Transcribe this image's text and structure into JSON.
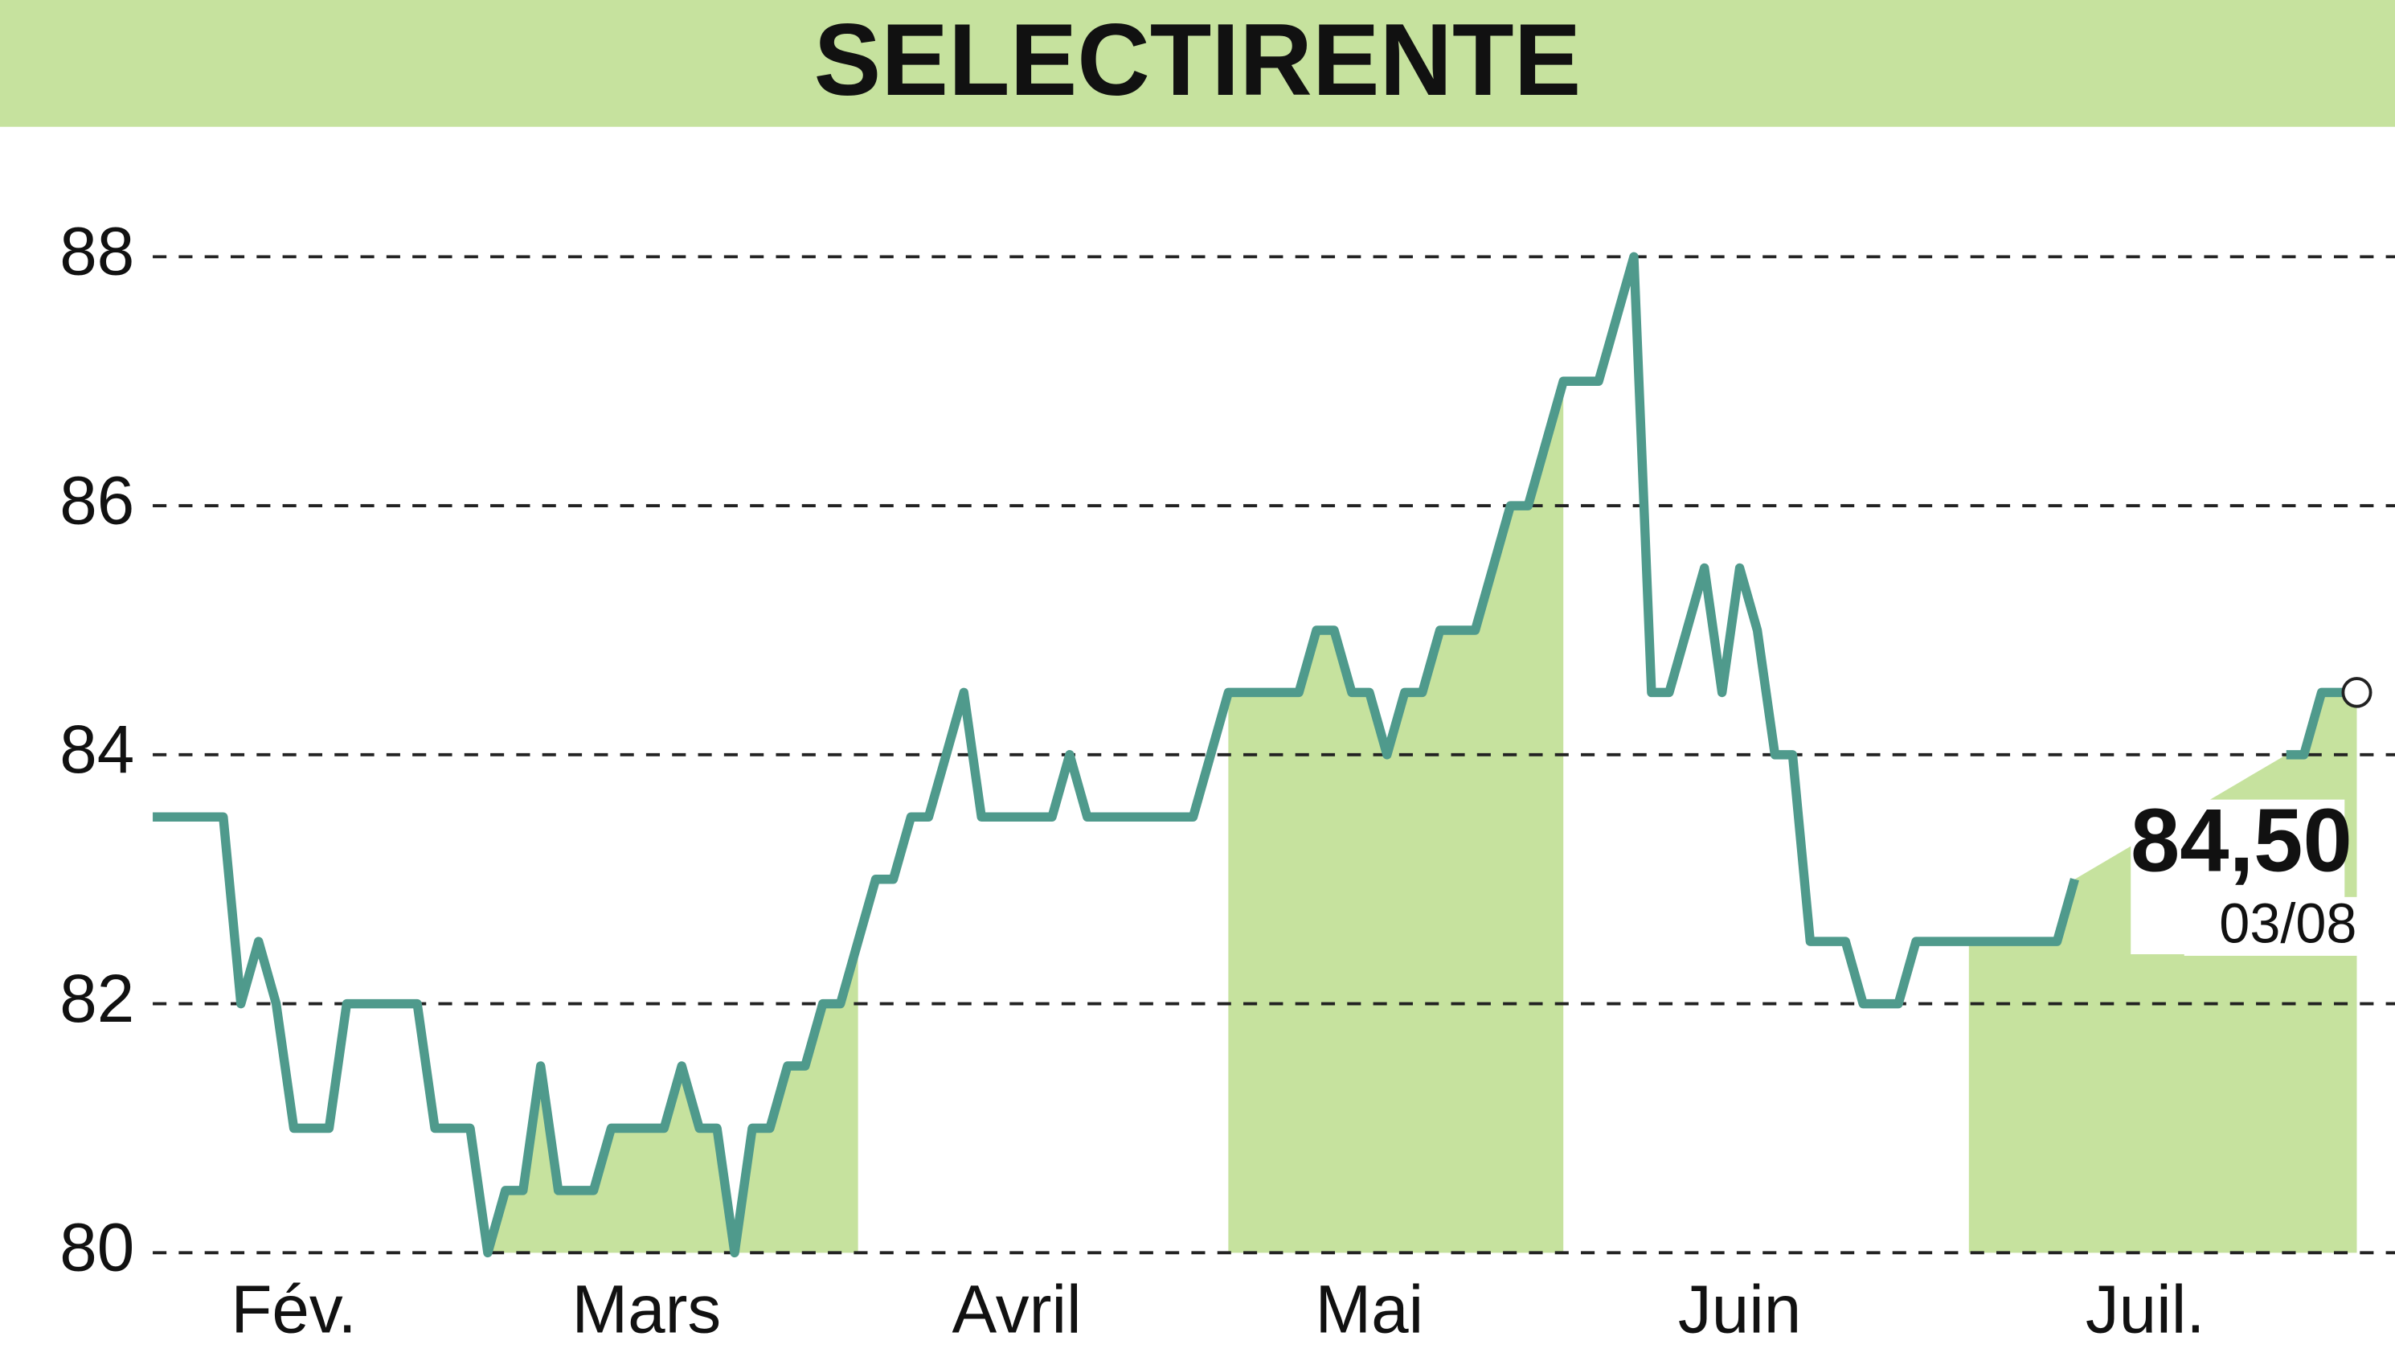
{
  "chart_data": {
    "type": "line",
    "title": "SELECTIRENTE",
    "categories": [
      null,
      null,
      null,
      null,
      null,
      null,
      null,
      null,
      "Fév.",
      null,
      null,
      null,
      null,
      null,
      null,
      null,
      null,
      null,
      null,
      null,
      null,
      null,
      null,
      null,
      null,
      null,
      null,
      null,
      "Mars",
      null,
      null,
      null,
      null,
      null,
      null,
      null,
      null,
      null,
      null,
      null,
      null,
      null,
      null,
      null,
      null,
      null,
      null,
      null,
      null,
      "Avril",
      null,
      null,
      null,
      null,
      null,
      null,
      null,
      null,
      null,
      null,
      null,
      null,
      null,
      null,
      null,
      null,
      null,
      null,
      null,
      "Mai",
      null,
      null,
      null,
      null,
      null,
      null,
      null,
      null,
      null,
      null,
      null,
      null,
      null,
      null,
      null,
      null,
      null,
      null,
      null,
      null,
      "Juin",
      null,
      null,
      null,
      null,
      null,
      null,
      null,
      null,
      null,
      null,
      null,
      null,
      null,
      null,
      null,
      null,
      null,
      null,
      null,
      null,
      null,
      null,
      "Juil.",
      null,
      null,
      null,
      null,
      null,
      null,
      null,
      null,
      null,
      null,
      null,
      null
    ],
    "series": [
      {
        "color": "#4f9a8c",
        "values": [
          83.5,
          83.5,
          83.5,
          83.5,
          83.5,
          82,
          82.5,
          82,
          81,
          81,
          81,
          82,
          82,
          82,
          82,
          82,
          81,
          81,
          81,
          80,
          80.5,
          80.5,
          81.5,
          80.5,
          80.5,
          80.5,
          81,
          81,
          81,
          81,
          81.5,
          81,
          81,
          80,
          81,
          81,
          81.5,
          81.5,
          82,
          82,
          82.5,
          83,
          83,
          83.5,
          83.5,
          84,
          84.5,
          83.5,
          83.5,
          83.5,
          83.5,
          83.5,
          84,
          83.5,
          83.5,
          83.5,
          83.5,
          83.5,
          83.5,
          83.5,
          84,
          84.5,
          84.5,
          84.5,
          84.5,
          84.5,
          85,
          85,
          84.5,
          84.5,
          84,
          84.5,
          84.5,
          85,
          85,
          85,
          85.5,
          86,
          86,
          86.5,
          87,
          87,
          87,
          87.5,
          88,
          84.5,
          84.5,
          85,
          85.5,
          84.5,
          85.5,
          85,
          84,
          84,
          82.5,
          82.5,
          82.5,
          82,
          82,
          82,
          82.5,
          82.5,
          82.5,
          82.5,
          82.5,
          82.5,
          82.5,
          82.5,
          82.5,
          83,
          null,
          null,
          null,
          null,
          null,
          null,
          null,
          null,
          null,
          null,
          null,
          84,
          84,
          84.5,
          84.5,
          84.5
        ]
      }
    ],
    "fill_color": "#c6e29e",
    "ylim": [
      80,
      88
    ],
    "yticks": [
      80,
      82,
      84,
      86,
      88
    ],
    "grid": true,
    "annotations": [
      {
        "text": "84,50"
      },
      {
        "text": "03/08"
      }
    ]
  }
}
